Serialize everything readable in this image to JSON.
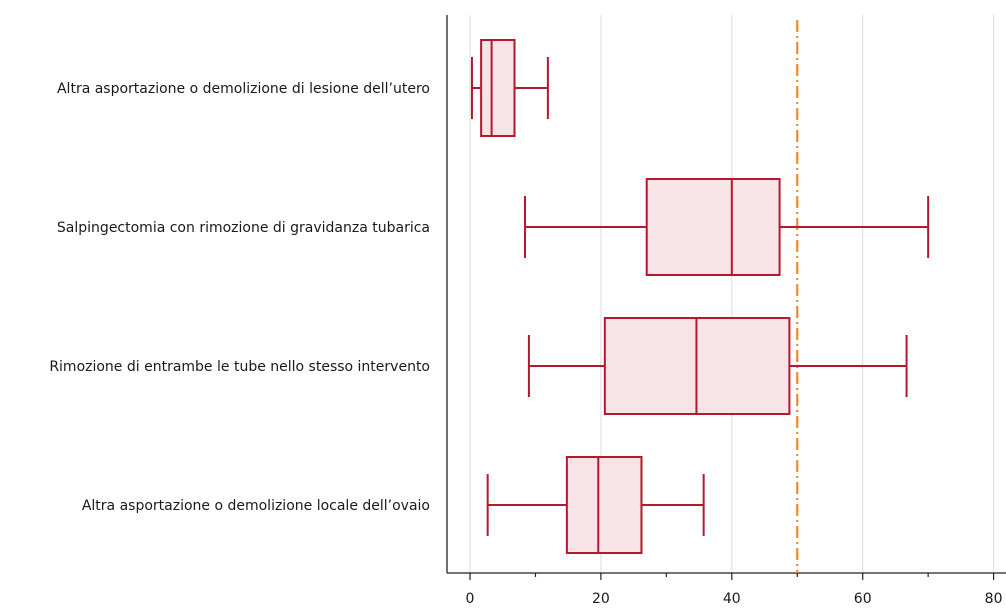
{
  "chart_data": {
    "type": "boxplot",
    "orientation": "horizontal",
    "title": "",
    "xlabel": "",
    "ylabel": "",
    "xlim": [
      -4,
      80
    ],
    "xticks": [
      0,
      20,
      40,
      60,
      80
    ],
    "xtick_labels": [
      "0",
      "20",
      "40",
      "60",
      "80"
    ],
    "minor_ticks": [
      10,
      30,
      50,
      70
    ],
    "grid": "vertical",
    "reference_line": {
      "value": 50,
      "color": "#f0892d",
      "style": "dash-dot"
    },
    "box_color": "#b5182d",
    "box_fill": "#f6e4e6",
    "categories": [
      "Altra asportazione o demolizione di lesione dell’utero",
      "Salpingectomia con rimozione di gravidanza tubarica",
      "Rimozione di entrambe le tube nello stesso intervento",
      "Altra asportazione o demolizione locale dell’ovaio"
    ],
    "boxes": [
      {
        "whisker_low": 0.3,
        "q1": 1.7,
        "median": 3.3,
        "q3": 6.8,
        "whisker_high": 11.9
      },
      {
        "whisker_low": 8.4,
        "q1": 27.0,
        "median": 40.0,
        "q3": 47.3,
        "whisker_high": 70.0
      },
      {
        "whisker_low": 9.0,
        "q1": 20.6,
        "median": 34.6,
        "q3": 48.8,
        "whisker_high": 66.7
      },
      {
        "whisker_low": 2.7,
        "q1": 14.8,
        "median": 19.6,
        "q3": 26.2,
        "whisker_high": 35.7
      }
    ]
  }
}
